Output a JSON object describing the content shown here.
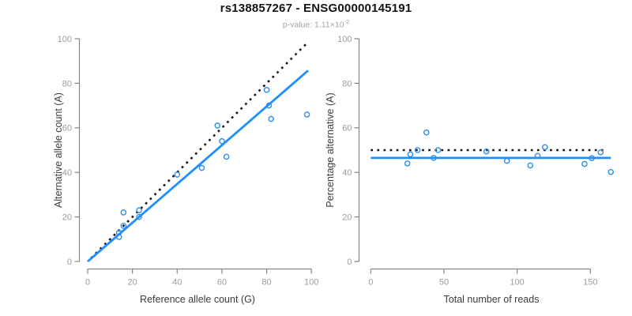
{
  "header": {
    "title": "rs138857267 - ENSG00000145191",
    "p_value_text": "p-value: 1.11×10",
    "p_value_exponent": "-2"
  },
  "colors": {
    "line_blue": "#1E8FFF",
    "point_blue": "#2E8FE8",
    "dotted_black": "#141414",
    "axis_line_gray": "#858585",
    "tick_label_gray": "#9C9C9C",
    "axis_title_dark": "#3C3C3C"
  },
  "chart_data": [
    {
      "type": "scatter",
      "title": "rs138857267 - ENSG00000145191",
      "subtitle": "p-value: 1.11e-2",
      "xlabel": "Reference allele count (G)",
      "ylabel": "Alternative allele count (A)",
      "xlim": [
        0,
        100
      ],
      "ylim": [
        0,
        100
      ],
      "xticks": [
        0,
        20,
        40,
        60,
        80,
        100
      ],
      "yticks": [
        0,
        20,
        40,
        60,
        80,
        100
      ],
      "grid": false,
      "legend": null,
      "points": [
        [
          14,
          11
        ],
        [
          14,
          13
        ],
        [
          16,
          16
        ],
        [
          16,
          22
        ],
        [
          23,
          20
        ],
        [
          23,
          23
        ],
        [
          40,
          39
        ],
        [
          51,
          42
        ],
        [
          62,
          47
        ],
        [
          60,
          54
        ],
        [
          58,
          61
        ],
        [
          82,
          64
        ],
        [
          81,
          70
        ],
        [
          80,
          77
        ],
        [
          98,
          66
        ]
      ],
      "lines": [
        {
          "name": "identity-line",
          "style": "dotted",
          "color_key": "dotted_black",
          "x1": 1.5,
          "y1": 1.5,
          "x2": 98,
          "y2": 98
        },
        {
          "name": "regression-line",
          "style": "solid",
          "color_key": "line_blue",
          "x1": 0,
          "y1": 0,
          "x2": 98.5,
          "y2": 85.7
        }
      ]
    },
    {
      "type": "scatter",
      "title": "",
      "xlabel": "Total number of reads",
      "ylabel": "Percentage alternative (A)",
      "xlim": [
        0,
        168
      ],
      "ylim": [
        0,
        100
      ],
      "xticks": [
        0,
        50,
        100,
        150
      ],
      "yticks": [
        0,
        20,
        40,
        60,
        80,
        100
      ],
      "grid": false,
      "legend": null,
      "points": [
        [
          25,
          44.0
        ],
        [
          27,
          48.1
        ],
        [
          32,
          50.0
        ],
        [
          38,
          57.9
        ],
        [
          43,
          46.5
        ],
        [
          46,
          50.0
        ],
        [
          79,
          49.4
        ],
        [
          93,
          45.2
        ],
        [
          109,
          43.1
        ],
        [
          114,
          47.4
        ],
        [
          119,
          51.3
        ],
        [
          146,
          43.8
        ],
        [
          151,
          46.4
        ],
        [
          157,
          49.0
        ],
        [
          164,
          40.2
        ]
      ],
      "lines": [
        {
          "name": "expected-50pct-line",
          "style": "dotted",
          "color_key": "dotted_black",
          "x1": 0,
          "y1": 50,
          "x2": 161,
          "y2": 50
        },
        {
          "name": "mean-ratio-line",
          "style": "solid",
          "color_key": "line_blue",
          "x1": 0,
          "y1": 46.5,
          "x2": 164,
          "y2": 46.5
        }
      ]
    }
  ]
}
